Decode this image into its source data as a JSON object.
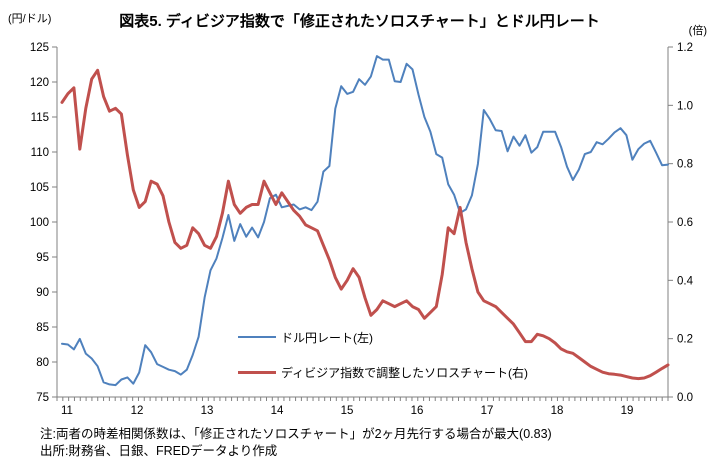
{
  "title": "図表5. ディビジア指数で「修正されたソロスチャート」とドル円レート",
  "axes": {
    "left_unit": "(円/ドル)",
    "right_unit": "(倍)"
  },
  "legend": {
    "series1": "ドル円レート(左)",
    "series2": "ディビジア指数で調整したソロスチャート(右)"
  },
  "notes": {
    "line1": "注:両者の時差相関係数は、「修正されたソロスチャート」が2ヶ月先行する場合が最大(0.83)",
    "line2": "出所:財務省、日銀、FREDデータより作成"
  },
  "colors": {
    "axis": "#808080",
    "text": "#000000",
    "background": "#ffffff",
    "series1": "#4F81BD",
    "series2": "#C0504D"
  },
  "chart_data": {
    "type": "line",
    "title": "図表5. ディビジア指数で「修正されたソロスチャート」とドル円レート",
    "x_unit": "month",
    "x_start": "2011-01",
    "x_end": "2019-07",
    "x_tick_labels": [
      "11",
      "12",
      "13",
      "14",
      "15",
      "16",
      "17",
      "18",
      "19"
    ],
    "grid": false,
    "legend_position": "inside-lower-center",
    "left_axis": {
      "label": "(円/ドル)",
      "min": 75,
      "max": 125,
      "tick_step": 5,
      "tick_labels": [
        "75",
        "80",
        "85",
        "90",
        "95",
        "100",
        "105",
        "110",
        "115",
        "120",
        "125"
      ]
    },
    "right_axis": {
      "label": "(倍)",
      "min": 0.0,
      "max": 1.2,
      "tick_step": 0.2,
      "tick_labels": [
        "0.0",
        "0.2",
        "0.4",
        "0.6",
        "0.8",
        "1.0",
        "1.2"
      ]
    },
    "series": [
      {
        "name": "ドル円レート(左)",
        "axis": "left",
        "color": "#4F81BD",
        "line_width": 2,
        "values": [
          82.6,
          82.5,
          81.8,
          83.3,
          81.2,
          80.5,
          79.4,
          77.1,
          76.8,
          76.7,
          77.5,
          77.8,
          76.9,
          78.5,
          82.4,
          81.4,
          79.7,
          79.3,
          78.9,
          78.7,
          78.2,
          78.9,
          81.0,
          83.6,
          89.2,
          93.1,
          94.8,
          97.7,
          101.0,
          97.3,
          99.7,
          97.9,
          99.2,
          97.8,
          100.0,
          103.4,
          103.9,
          102.1,
          102.3,
          102.5,
          101.8,
          102.1,
          101.7,
          102.9,
          107.2,
          108.0,
          116.2,
          119.4,
          118.3,
          118.6,
          120.4,
          119.6,
          120.8,
          123.7,
          123.2,
          123.2,
          120.1,
          120.0,
          122.6,
          121.8,
          118.2,
          115.0,
          112.9,
          109.7,
          109.2,
          105.4,
          103.9,
          101.3,
          101.8,
          103.8,
          108.3,
          116.0,
          114.7,
          113.1,
          113.0,
          110.1,
          112.2,
          110.9,
          112.4,
          109.9,
          110.7,
          112.9,
          112.9,
          112.9,
          110.7,
          107.9,
          106.0,
          107.5,
          109.7,
          110.0,
          111.4,
          111.1,
          111.9,
          112.8,
          113.4,
          112.4,
          108.9,
          110.4,
          111.2,
          111.6,
          109.9,
          108.1,
          108.2
        ]
      },
      {
        "name": "ディビジア指数で調整したソロスチャート(右)",
        "axis": "right",
        "color": "#C0504D",
        "line_width": 3,
        "values": [
          1.01,
          1.04,
          1.06,
          0.85,
          0.99,
          1.09,
          1.12,
          1.03,
          0.98,
          0.99,
          0.97,
          0.83,
          0.71,
          0.65,
          0.67,
          0.74,
          0.73,
          0.69,
          0.6,
          0.53,
          0.51,
          0.52,
          0.58,
          0.56,
          0.52,
          0.51,
          0.55,
          0.63,
          0.74,
          0.66,
          0.63,
          0.65,
          0.66,
          0.66,
          0.74,
          0.7,
          0.66,
          0.7,
          0.67,
          0.64,
          0.62,
          0.59,
          0.58,
          0.57,
          0.52,
          0.47,
          0.41,
          0.37,
          0.4,
          0.44,
          0.41,
          0.34,
          0.28,
          0.3,
          0.33,
          0.32,
          0.31,
          0.32,
          0.33,
          0.31,
          0.3,
          0.27,
          0.29,
          0.31,
          0.42,
          0.58,
          0.56,
          0.65,
          0.53,
          0.44,
          0.36,
          0.33,
          0.32,
          0.31,
          0.29,
          0.27,
          0.25,
          0.22,
          0.19,
          0.19,
          0.215,
          0.21,
          0.2,
          0.185,
          0.165,
          0.155,
          0.15,
          0.135,
          0.12,
          0.105,
          0.095,
          0.085,
          0.08,
          0.078,
          0.075,
          0.07,
          0.065,
          0.063,
          0.065,
          0.073,
          0.085,
          0.098,
          0.11
        ]
      }
    ]
  }
}
